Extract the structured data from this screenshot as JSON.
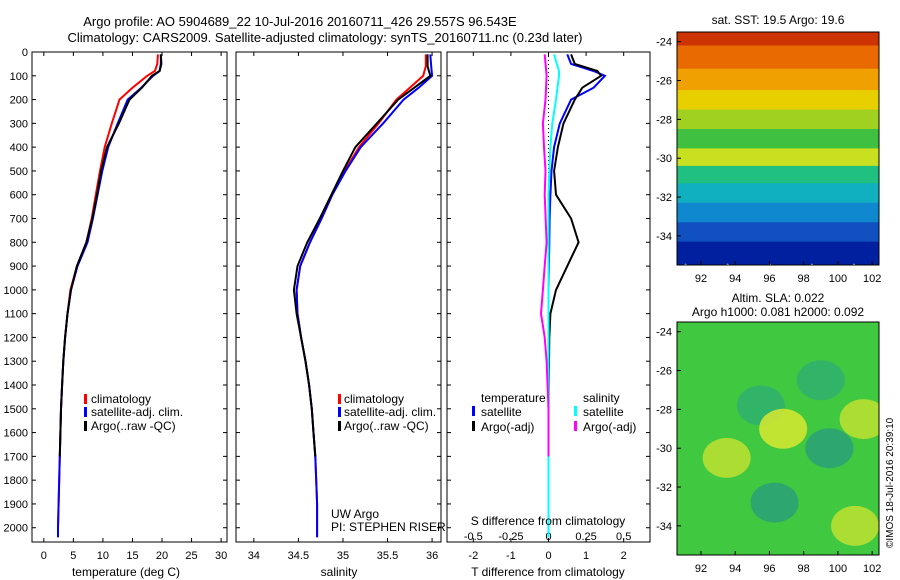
{
  "header": {
    "line1": "Argo profile: AO 5904689_22 10-Jul-2016 20160711_426 29.557S 96.543E",
    "line2": "Climatology: CARS2009. Satellite-adjusted climatology: synTS_20160711.nc (0.23d later)"
  },
  "colors": {
    "climatology": "#ff0000",
    "satellite": "#0000ff",
    "argo": "#000000",
    "sal_satellite": "#00ffff",
    "sal_argo": "#ff00ff"
  },
  "chart_data": [
    {
      "type": "line",
      "id": "temperature",
      "xlabel": "temperature (deg C)",
      "xlim": [
        -2,
        31
      ],
      "ylim": [
        2060,
        0
      ],
      "xticks": [
        0,
        5,
        10,
        15,
        20,
        25,
        30
      ],
      "yticks": [
        0,
        100,
        200,
        300,
        400,
        500,
        600,
        700,
        800,
        900,
        1000,
        1100,
        1200,
        1300,
        1400,
        1500,
        1600,
        1700,
        1800,
        1900,
        2000
      ],
      "legend": [
        "climatology",
        "satellite-adj. clim.",
        "Argo(..raw -QC)"
      ],
      "series": [
        {
          "name": "climatology",
          "color": "#ff0000",
          "points": [
            [
              19.3,
              10
            ],
            [
              19.2,
              50
            ],
            [
              18.8,
              80
            ],
            [
              17.5,
              100
            ],
            [
              15.0,
              150
            ],
            [
              12.8,
              200
            ],
            [
              11.5,
              300
            ],
            [
              10.3,
              400
            ],
            [
              9.5,
              500
            ],
            [
              8.8,
              600
            ],
            [
              8.1,
              700
            ],
            [
              7.2,
              800
            ],
            [
              5.6,
              900
            ],
            [
              4.5,
              1000
            ],
            [
              4.0,
              1100
            ],
            [
              3.6,
              1200
            ],
            [
              3.3,
              1300
            ],
            [
              3.1,
              1400
            ],
            [
              2.9,
              1500
            ],
            [
              2.8,
              1600
            ],
            [
              2.7,
              1700
            ],
            [
              2.6,
              1800
            ],
            [
              2.5,
              1900
            ],
            [
              2.4,
              2000
            ],
            [
              2.4,
              2040
            ]
          ]
        },
        {
          "name": "satellite-adj. clim.",
          "color": "#0000ff",
          "points": [
            [
              19.8,
              10
            ],
            [
              19.8,
              50
            ],
            [
              19.6,
              80
            ],
            [
              18.5,
              100
            ],
            [
              16.5,
              150
            ],
            [
              14.2,
              200
            ],
            [
              12.5,
              300
            ],
            [
              10.9,
              400
            ],
            [
              9.9,
              500
            ],
            [
              9.1,
              600
            ],
            [
              8.3,
              700
            ],
            [
              7.4,
              800
            ],
            [
              5.7,
              900
            ],
            [
              4.6,
              1000
            ],
            [
              4.0,
              1100
            ],
            [
              3.6,
              1200
            ],
            [
              3.3,
              1300
            ],
            [
              3.1,
              1400
            ],
            [
              2.9,
              1500
            ],
            [
              2.8,
              1600
            ],
            [
              2.7,
              1700
            ],
            [
              2.6,
              1800
            ],
            [
              2.5,
              1900
            ],
            [
              2.4,
              2000
            ],
            [
              2.4,
              2040
            ]
          ]
        },
        {
          "name": "Argo(..raw -QC)",
          "color": "#000000",
          "points": [
            [
              19.8,
              10
            ],
            [
              19.9,
              50
            ],
            [
              19.6,
              80
            ],
            [
              18.3,
              100
            ],
            [
              16.6,
              150
            ],
            [
              14.5,
              200
            ],
            [
              12.7,
              300
            ],
            [
              10.7,
              400
            ],
            [
              9.7,
              500
            ],
            [
              9.0,
              600
            ],
            [
              8.2,
              700
            ],
            [
              7.2,
              800
            ],
            [
              5.6,
              900
            ],
            [
              4.6,
              1000
            ],
            [
              4.0,
              1100
            ],
            [
              3.6,
              1200
            ],
            [
              3.3,
              1300
            ],
            [
              3.1,
              1400
            ],
            [
              2.9,
              1500
            ],
            [
              2.8,
              1600
            ],
            [
              2.7,
              1700
            ]
          ]
        }
      ]
    },
    {
      "type": "line",
      "id": "salinity",
      "xlabel": "salinity",
      "xlim": [
        33.8,
        36.1
      ],
      "ylim": [
        2060,
        0
      ],
      "xticks": [
        34,
        34.5,
        35,
        35.5,
        36
      ],
      "xticklabels": [
        "34",
        "34.5",
        "35",
        "35.5",
        "36"
      ],
      "legend": [
        "climatology",
        "satellite-adj. clim.",
        "Argo(..raw -QC)"
      ],
      "annotation": [
        "UW Argo",
        "PI: STEPHEN RISER"
      ],
      "series": [
        {
          "name": "climatology",
          "color": "#ff0000",
          "points": [
            [
              35.93,
              10
            ],
            [
              35.93,
              60
            ],
            [
              35.9,
              100
            ],
            [
              35.75,
              150
            ],
            [
              35.6,
              200
            ],
            [
              35.4,
              300
            ],
            [
              35.18,
              400
            ],
            [
              35.02,
              500
            ],
            [
              34.88,
              600
            ],
            [
              34.76,
              700
            ],
            [
              34.63,
              800
            ],
            [
              34.52,
              900
            ],
            [
              34.48,
              1000
            ],
            [
              34.49,
              1100
            ],
            [
              34.53,
              1200
            ],
            [
              34.58,
              1300
            ],
            [
              34.62,
              1400
            ],
            [
              34.65,
              1500
            ],
            [
              34.67,
              1600
            ],
            [
              34.69,
              1700
            ],
            [
              34.7,
              1800
            ],
            [
              34.71,
              1900
            ],
            [
              34.71,
              2000
            ],
            [
              34.71,
              2040
            ]
          ]
        },
        {
          "name": "satellite-adj. clim.",
          "color": "#0000ff",
          "points": [
            [
              35.98,
              10
            ],
            [
              35.99,
              60
            ],
            [
              36.0,
              100
            ],
            [
              35.85,
              150
            ],
            [
              35.68,
              200
            ],
            [
              35.45,
              300
            ],
            [
              35.2,
              400
            ],
            [
              35.03,
              500
            ],
            [
              34.88,
              600
            ],
            [
              34.76,
              700
            ],
            [
              34.63,
              800
            ],
            [
              34.52,
              900
            ],
            [
              34.48,
              1000
            ],
            [
              34.49,
              1100
            ],
            [
              34.53,
              1200
            ],
            [
              34.58,
              1300
            ],
            [
              34.62,
              1400
            ],
            [
              34.65,
              1500
            ],
            [
              34.67,
              1600
            ],
            [
              34.69,
              1700
            ],
            [
              34.7,
              1800
            ],
            [
              34.71,
              1900
            ],
            [
              34.71,
              2000
            ],
            [
              34.71,
              2040
            ]
          ]
        },
        {
          "name": "Argo(..raw -QC)",
          "color": "#000000",
          "points": [
            [
              35.95,
              10
            ],
            [
              35.95,
              60
            ],
            [
              35.98,
              100
            ],
            [
              35.8,
              150
            ],
            [
              35.62,
              200
            ],
            [
              35.38,
              300
            ],
            [
              35.14,
              400
            ],
            [
              35.0,
              500
            ],
            [
              34.87,
              600
            ],
            [
              34.74,
              700
            ],
            [
              34.6,
              800
            ],
            [
              34.49,
              900
            ],
            [
              34.45,
              1000
            ],
            [
              34.48,
              1100
            ],
            [
              34.53,
              1200
            ],
            [
              34.58,
              1300
            ],
            [
              34.62,
              1400
            ],
            [
              34.65,
              1500
            ],
            [
              34.67,
              1600
            ],
            [
              34.69,
              1700
            ]
          ]
        }
      ]
    },
    {
      "type": "line",
      "id": "differences",
      "xlabel": "T difference from climatology",
      "xlabel2": "S difference from climatology",
      "xlim": [
        -2.7,
        2.7
      ],
      "ylim": [
        2060,
        0
      ],
      "xticks": [
        -2,
        -1,
        0,
        1,
        2
      ],
      "x2ticklabels": [
        "-0.5",
        "-0.25",
        "0",
        "0.25",
        "0.5"
      ],
      "legend": {
        "temperature": [
          "satellite",
          "Argo(-adj)"
        ],
        "salinity": [
          "satellite",
          "Argo(-adj)"
        ]
      },
      "legend_titles": [
        "temperature",
        "salinity"
      ],
      "series": [
        {
          "name": "temperature satellite",
          "color": "#0000ff",
          "points": [
            [
              0.5,
              10
            ],
            [
              0.6,
              50
            ],
            [
              1.2,
              80
            ],
            [
              1.5,
              100
            ],
            [
              1.2,
              150
            ],
            [
              0.6,
              200
            ],
            [
              0.3,
              300
            ],
            [
              0.15,
              400
            ],
            [
              0.08,
              500
            ],
            [
              0.05,
              600
            ],
            [
              0.03,
              700
            ],
            [
              0.02,
              800
            ],
            [
              0.01,
              900
            ],
            [
              0,
              1000
            ],
            [
              0,
              1200
            ],
            [
              0,
              1500
            ],
            [
              0,
              2000
            ],
            [
              0,
              2040
            ]
          ]
        },
        {
          "name": "temperature Argo(-adj)",
          "color": "#000000",
          "points": [
            [
              0.6,
              10
            ],
            [
              0.7,
              50
            ],
            [
              1.3,
              80
            ],
            [
              1.4,
              100
            ],
            [
              0.9,
              150
            ],
            [
              0.7,
              200
            ],
            [
              0.4,
              300
            ],
            [
              0.25,
              400
            ],
            [
              0.15,
              500
            ],
            [
              0.2,
              600
            ],
            [
              0.6,
              700
            ],
            [
              0.8,
              800
            ],
            [
              0.5,
              900
            ],
            [
              0.2,
              1000
            ],
            [
              0.05,
              1100
            ],
            [
              0.02,
              1200
            ],
            [
              0,
              1500
            ],
            [
              0,
              1700
            ]
          ]
        },
        {
          "name": "salinity satellite",
          "color": "#00ffff",
          "points": [
            [
              0.15,
              10
            ],
            [
              0.22,
              50
            ],
            [
              0.28,
              80
            ],
            [
              0.28,
              100
            ],
            [
              0.2,
              200
            ],
            [
              0.1,
              300
            ],
            [
              0.05,
              400
            ],
            [
              0.02,
              500
            ],
            [
              0,
              600
            ],
            [
              0,
              1000
            ],
            [
              0,
              2040
            ]
          ]
        },
        {
          "name": "salinity Argo(-adj)",
          "color": "#ff00ff",
          "points": [
            [
              -0.1,
              10
            ],
            [
              -0.05,
              100
            ],
            [
              -0.08,
              200
            ],
            [
              -0.15,
              300
            ],
            [
              -0.12,
              400
            ],
            [
              -0.08,
              500
            ],
            [
              -0.1,
              600
            ],
            [
              -0.05,
              800
            ],
            [
              -0.1,
              900
            ],
            [
              -0.15,
              1000
            ],
            [
              -0.2,
              1100
            ],
            [
              -0.1,
              1200
            ],
            [
              -0.05,
              1300
            ],
            [
              0,
              1500
            ],
            [
              0,
              1700
            ]
          ]
        }
      ]
    },
    {
      "type": "heatmap",
      "id": "sst_map",
      "title": "sat. SST: 19.5 Argo: 19.6",
      "xticks": [
        92,
        94,
        96,
        98,
        100,
        102
      ],
      "yticks": [
        -24,
        -26,
        -28,
        -30,
        -32,
        -34
      ],
      "xlim": [
        90.6,
        102.4
      ],
      "ylim": [
        -35.5,
        -23.5
      ],
      "bands": [
        {
          "lat": -23.8,
          "color": "#cc3300"
        },
        {
          "lat": -25.0,
          "color": "#e86a00"
        },
        {
          "lat": -26.2,
          "color": "#f0a000"
        },
        {
          "lat": -27.2,
          "color": "#e8d000"
        },
        {
          "lat": -28.2,
          "color": "#a0d020"
        },
        {
          "lat": -29.2,
          "color": "#40c040"
        },
        {
          "lat": -30.2,
          "color": "#c8e020"
        },
        {
          "lat": -31.0,
          "color": "#20c080"
        },
        {
          "lat": -32.0,
          "color": "#10b0c0"
        },
        {
          "lat": -33.0,
          "color": "#1088d0"
        },
        {
          "lat": -34.0,
          "color": "#1050c0"
        },
        {
          "lat": -35.0,
          "color": "#0020a0"
        }
      ]
    },
    {
      "type": "heatmap",
      "id": "sla_map",
      "title_line1": "Altim. SLA: 0.022",
      "title_line2": "Argo h1000: 0.081 h2000: 0.092",
      "xticks": [
        92,
        94,
        96,
        98,
        100,
        102
      ],
      "yticks": [
        -24,
        -26,
        -28,
        -30,
        -32,
        -34
      ],
      "xlim": [
        90.6,
        102.4
      ],
      "ylim": [
        -35.5,
        -23.5
      ],
      "base_color": "#40c840",
      "blobs": [
        {
          "lon": 95.5,
          "lat": -27.8,
          "color": "#30b070"
        },
        {
          "lon": 99.0,
          "lat": -26.5,
          "color": "#30b070"
        },
        {
          "lon": 99.5,
          "lat": -30.0,
          "color": "#2ca078"
        },
        {
          "lon": 96.3,
          "lat": -32.8,
          "color": "#2ca078"
        },
        {
          "lon": 93.5,
          "lat": -30.5,
          "color": "#c0e030"
        },
        {
          "lon": 101.5,
          "lat": -28.5,
          "color": "#c0e030"
        },
        {
          "lon": 96.8,
          "lat": -29.0,
          "color": "#d8e830"
        },
        {
          "lon": 101.0,
          "lat": -34.0,
          "color": "#c0e030"
        }
      ]
    }
  ],
  "footer_stamp": "©IMOS 18-Jul-2016 20:39:10"
}
